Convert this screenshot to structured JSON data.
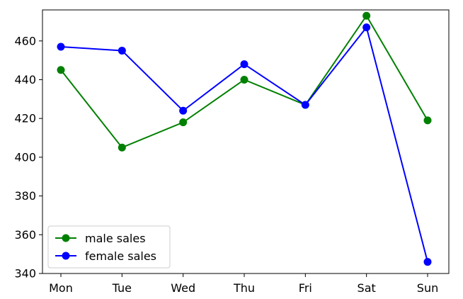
{
  "chart_data": {
    "type": "line",
    "categories": [
      "Mon",
      "Tue",
      "Wed",
      "Thu",
      "Fri",
      "Sat",
      "Sun"
    ],
    "series": [
      {
        "name": "male sales",
        "color": "#008000",
        "values": [
          445,
          405,
          418,
          440,
          427,
          473,
          419
        ]
      },
      {
        "name": "female sales",
        "color": "#0000ff",
        "values": [
          457,
          455,
          424,
          448,
          427,
          467,
          346
        ]
      }
    ],
    "title": "",
    "xlabel": "",
    "ylabel": "",
    "ylim": [
      340,
      476
    ],
    "yticks": [
      340,
      360,
      380,
      400,
      420,
      440,
      460
    ],
    "grid": false,
    "legend_position": "lower-left"
  }
}
